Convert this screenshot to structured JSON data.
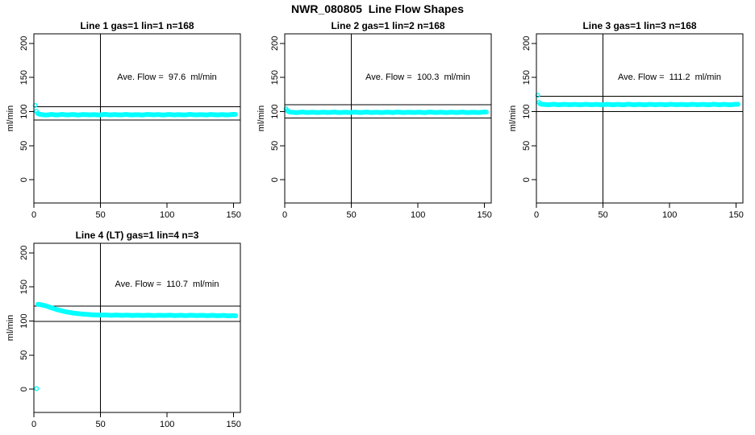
{
  "page_title": "NWR_080805  Line Flow Shapes",
  "style": {
    "point_color": "#00ffff",
    "axis_color": "#000000",
    "background": "#ffffff"
  },
  "chart_data": [
    {
      "type": "scatter",
      "title": "Line 1 gas=1 lin=1 n=168",
      "annotation": "Ave. Flow =  97.6  ml/min",
      "ave_flow_ml_min": 97.6,
      "n": 168,
      "xlabel": "",
      "ylabel": "ml/min",
      "x_ticks": [
        0,
        50,
        100,
        150
      ],
      "y_ticks": [
        0,
        50,
        100,
        150,
        200
      ],
      "xlim": [
        0,
        155
      ],
      "ylim": [
        -34,
        214
      ],
      "hlines": [
        107.4,
        87.8
      ],
      "vline": 50,
      "grid": false,
      "annotation_pos": [
        100,
        150
      ],
      "segments": [
        [
          [
            1,
            109
          ],
          [
            2,
            99.5
          ],
          [
            3,
            96.8
          ],
          [
            4,
            96.2
          ],
          [
            6,
            95.6
          ],
          [
            9,
            95.0
          ],
          [
            13,
            95.8
          ],
          [
            17,
            95.1
          ],
          [
            21,
            95.9
          ],
          [
            25,
            95.2
          ],
          [
            29,
            95.7
          ],
          [
            33,
            95.0
          ],
          [
            37,
            95.8
          ],
          [
            41,
            95.2
          ],
          [
            45,
            95.6
          ],
          [
            49,
            95.0
          ],
          [
            53,
            95.9
          ],
          [
            57,
            95.2
          ],
          [
            61,
            95.7
          ],
          [
            65,
            95.1
          ],
          [
            69,
            95.8
          ],
          [
            73,
            95.2
          ],
          [
            77,
            95.6
          ],
          [
            81,
            95.0
          ],
          [
            85,
            95.9
          ],
          [
            89,
            95.3
          ],
          [
            93,
            95.7
          ],
          [
            97,
            95.0
          ],
          [
            101,
            95.8
          ],
          [
            105,
            95.2
          ],
          [
            109,
            95.6
          ],
          [
            113,
            95.1
          ],
          [
            117,
            95.9
          ],
          [
            121,
            95.2
          ],
          [
            125,
            95.7
          ],
          [
            129,
            95.1
          ],
          [
            133,
            95.8
          ],
          [
            137,
            95.2
          ],
          [
            141,
            95.6
          ],
          [
            145,
            95.1
          ],
          [
            149,
            95.8
          ],
          [
            152,
            96.0
          ]
        ]
      ]
    },
    {
      "type": "scatter",
      "title": "Line 2 gas=1 lin=2 n=168",
      "annotation": "Ave. Flow =  100.3  ml/min",
      "ave_flow_ml_min": 100.3,
      "n": 168,
      "xlabel": "",
      "ylabel": "ml/min",
      "x_ticks": [
        0,
        50,
        100,
        150
      ],
      "y_ticks": [
        0,
        50,
        100,
        150,
        200
      ],
      "xlim": [
        0,
        155
      ],
      "ylim": [
        -34,
        214
      ],
      "hlines": [
        110.3,
        90.3
      ],
      "vline": 50,
      "grid": false,
      "annotation_pos": [
        100,
        150
      ],
      "segments": [
        [
          [
            1,
            104
          ],
          [
            2,
            101
          ],
          [
            3,
            99.8
          ],
          [
            4,
            99.3
          ],
          [
            6,
            99.0
          ],
          [
            9,
            98.5
          ],
          [
            13,
            99.3
          ],
          [
            17,
            98.6
          ],
          [
            21,
            99.2
          ],
          [
            25,
            98.5
          ],
          [
            29,
            99.1
          ],
          [
            33,
            98.6
          ],
          [
            37,
            99.3
          ],
          [
            41,
            98.5
          ],
          [
            45,
            99.1
          ],
          [
            49,
            98.6
          ],
          [
            53,
            99.2
          ],
          [
            57,
            98.5
          ],
          [
            61,
            99.3
          ],
          [
            65,
            98.6
          ],
          [
            69,
            99.1
          ],
          [
            73,
            98.5
          ],
          [
            77,
            99.2
          ],
          [
            81,
            98.6
          ],
          [
            85,
            99.3
          ],
          [
            89,
            98.5
          ],
          [
            93,
            99.1
          ],
          [
            97,
            98.6
          ],
          [
            101,
            99.2
          ],
          [
            105,
            98.5
          ],
          [
            109,
            99.3
          ],
          [
            113,
            98.6
          ],
          [
            117,
            99.1
          ],
          [
            121,
            98.5
          ],
          [
            125,
            99.2
          ],
          [
            129,
            98.6
          ],
          [
            133,
            99.3
          ],
          [
            137,
            98.5
          ],
          [
            141,
            99.1
          ],
          [
            145,
            98.6
          ],
          [
            149,
            99.2
          ],
          [
            152,
            99.4
          ]
        ]
      ]
    },
    {
      "type": "scatter",
      "title": "Line 3 gas=1 lin=3 n=168",
      "annotation": "Ave. Flow =  111.2  ml/min",
      "ave_flow_ml_min": 111.2,
      "n": 168,
      "xlabel": "",
      "ylabel": "ml/min",
      "x_ticks": [
        0,
        50,
        100,
        150
      ],
      "y_ticks": [
        0,
        50,
        100,
        150,
        200
      ],
      "xlim": [
        0,
        155
      ],
      "ylim": [
        -34,
        214
      ],
      "hlines": [
        122.3,
        100.1
      ],
      "vline": 50,
      "grid": false,
      "annotation_pos": [
        100,
        150
      ],
      "segments": [
        [
          [
            1,
            124
          ],
          [
            2,
            112.5
          ],
          [
            3,
            111.2
          ],
          [
            4,
            110.8
          ],
          [
            6,
            110.4
          ],
          [
            9,
            110.0
          ],
          [
            13,
            110.7
          ],
          [
            17,
            110.0
          ],
          [
            21,
            110.6
          ],
          [
            25,
            110.1
          ],
          [
            29,
            110.5
          ],
          [
            33,
            110.0
          ],
          [
            37,
            110.7
          ],
          [
            41,
            110.1
          ],
          [
            45,
            110.5
          ],
          [
            49,
            110.0
          ],
          [
            53,
            110.6
          ],
          [
            57,
            110.1
          ],
          [
            61,
            110.5
          ],
          [
            65,
            110.0
          ],
          [
            69,
            110.7
          ],
          [
            73,
            110.1
          ],
          [
            77,
            110.5
          ],
          [
            81,
            110.0
          ],
          [
            85,
            110.6
          ],
          [
            89,
            110.1
          ],
          [
            93,
            110.5
          ],
          [
            97,
            110.0
          ],
          [
            101,
            110.7
          ],
          [
            105,
            110.1
          ],
          [
            109,
            110.5
          ],
          [
            113,
            110.0
          ],
          [
            117,
            110.6
          ],
          [
            121,
            110.1
          ],
          [
            125,
            110.5
          ],
          [
            129,
            110.0
          ],
          [
            133,
            110.7
          ],
          [
            137,
            110.1
          ],
          [
            141,
            110.5
          ],
          [
            145,
            110.0
          ],
          [
            149,
            110.6
          ],
          [
            152,
            110.8
          ]
        ]
      ]
    },
    {
      "type": "scatter",
      "title": "Line 4 (LT) gas=1 lin=4 n=3",
      "annotation": "Ave. Flow =  110.7  ml/min",
      "ave_flow_ml_min": 110.7,
      "n": 3,
      "xlabel": "",
      "ylabel": "ml/min",
      "x_ticks": [
        0,
        50,
        100,
        150
      ],
      "y_ticks": [
        0,
        50,
        100,
        150,
        200
      ],
      "xlim": [
        0,
        155
      ],
      "ylim": [
        -34,
        214
      ],
      "hlines": [
        121.8,
        99.6
      ],
      "vline": 50,
      "grid": false,
      "annotation_pos": [
        100,
        150
      ],
      "segments": [
        [
          [
            2,
            1
          ]
        ],
        [
          [
            3,
            124.5
          ],
          [
            5,
            124.0
          ],
          [
            7,
            123.2
          ],
          [
            9,
            122.2
          ],
          [
            12,
            120.3
          ],
          [
            15,
            118.3
          ],
          [
            18,
            116.4
          ],
          [
            21,
            114.9
          ],
          [
            24,
            113.6
          ],
          [
            27,
            112.5
          ],
          [
            30,
            111.6
          ],
          [
            34,
            110.7
          ],
          [
            38,
            110.0
          ],
          [
            42,
            109.4
          ],
          [
            46,
            109.0
          ],
          [
            50,
            108.7
          ],
          [
            54,
            108.9
          ],
          [
            58,
            108.4
          ],
          [
            62,
            108.8
          ],
          [
            66,
            108.3
          ],
          [
            70,
            108.7
          ],
          [
            74,
            108.2
          ],
          [
            78,
            108.6
          ],
          [
            82,
            108.1
          ],
          [
            86,
            108.6
          ],
          [
            90,
            108.0
          ],
          [
            94,
            108.5
          ],
          [
            98,
            108.1
          ],
          [
            102,
            108.6
          ],
          [
            106,
            108.0
          ],
          [
            110,
            108.4
          ],
          [
            114,
            107.9
          ],
          [
            118,
            108.5
          ],
          [
            122,
            108.0
          ],
          [
            126,
            108.4
          ],
          [
            130,
            107.9
          ],
          [
            134,
            108.3
          ],
          [
            138,
            107.8
          ],
          [
            142,
            108.2
          ],
          [
            146,
            107.6
          ],
          [
            149,
            108.0
          ],
          [
            152,
            107.6
          ]
        ]
      ]
    }
  ]
}
